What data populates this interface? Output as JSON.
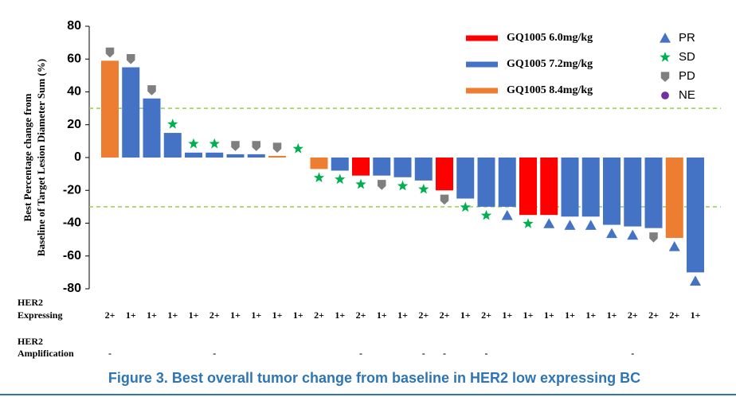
{
  "chart_data": {
    "type": "waterfall",
    "y_label": [
      "Best Percentage change from",
      "Baseline of Target Lesion Diameter Sum (%)"
    ],
    "ylim": [
      -80,
      80
    ],
    "yticks": [
      -80,
      -60,
      -40,
      -20,
      0,
      20,
      40,
      60,
      80
    ],
    "reference_lines": [
      30,
      -30
    ],
    "series": [
      {
        "name": "GQ1005 6.0mg/kg",
        "color": "#ff0000",
        "values": [
          null,
          null,
          null,
          null,
          null,
          null,
          null,
          null,
          null,
          null,
          null,
          null,
          -11,
          null,
          null,
          null,
          -20,
          null,
          null,
          null,
          -35,
          -35,
          null,
          null,
          null,
          null,
          null,
          null,
          null
        ]
      },
      {
        "name": "GQ1005 7.2mg/kg",
        "color": "#4472c4",
        "values": [
          null,
          55,
          36,
          15,
          3,
          3,
          2,
          2,
          null,
          0,
          null,
          -8,
          null,
          -11,
          -12,
          -14,
          null,
          -25,
          -30,
          -30,
          null,
          null,
          -36,
          -36,
          -41,
          -42,
          -43,
          null,
          -70
        ]
      },
      {
        "name": "GQ1005 8.4mg/kg",
        "color": "#ed7d31",
        "values": [
          59,
          null,
          null,
          null,
          null,
          null,
          null,
          null,
          1,
          null,
          -7,
          null,
          null,
          null,
          null,
          null,
          null,
          null,
          null,
          null,
          null,
          null,
          null,
          null,
          null,
          null,
          null,
          -49,
          null
        ]
      }
    ],
    "responses": [
      {
        "name": "PR",
        "color": "#4472c4",
        "shape": "triangle"
      },
      {
        "name": "SD",
        "color": "#00b050",
        "shape": "star"
      },
      {
        "name": "PD",
        "color": "#7f7f7f",
        "shape": "shield"
      },
      {
        "name": "NE",
        "color": "#7030a0",
        "shape": "circle"
      }
    ],
    "response": [
      "PD",
      "PD",
      "PD",
      "SD",
      "SD",
      "SD",
      "PD",
      "PD",
      "PD",
      "SD",
      "SD",
      "SD",
      "SD",
      "PD",
      "SD",
      "SD",
      "PD",
      "SD",
      "SD",
      "PR",
      "SD",
      "PR",
      "PR",
      "PR",
      "PR",
      "PR",
      "PD",
      "PR",
      "PR"
    ],
    "her2_expressing_label": [
      "HER2",
      "Expressing"
    ],
    "her2_expressing": [
      "2+",
      "1+",
      "1+",
      "1+",
      "1+",
      "2+",
      "1+",
      "1+",
      "1+",
      "1+",
      "2+",
      "1+",
      "2+",
      "1+",
      "1+",
      "2+",
      "2+",
      "1+",
      "2+",
      "1+",
      "1+",
      "1+",
      "1+",
      "1+",
      "1+",
      "2+",
      "2+",
      "2+",
      "1+"
    ],
    "her2_amplification_label": [
      "HER2",
      "Amplification"
    ],
    "her2_amplification": [
      "-",
      null,
      null,
      null,
      null,
      "-",
      null,
      null,
      null,
      null,
      null,
      null,
      "-",
      null,
      null,
      "-",
      "-",
      null,
      "-",
      null,
      null,
      null,
      null,
      null,
      null,
      "-",
      null,
      null,
      null
    ],
    "caption": "Figure 3. Best overall tumor change from baseline in HER2 low expressing BC"
  }
}
